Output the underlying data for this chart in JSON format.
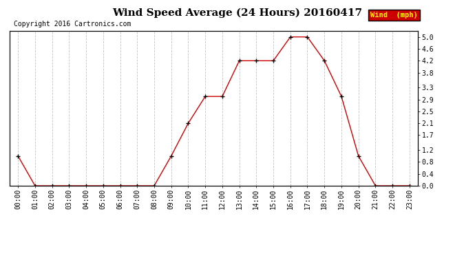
{
  "title": "Wind Speed Average (24 Hours) 20160417",
  "copyright": "Copyright 2016 Cartronics.com",
  "legend_label": "Wind  (mph)",
  "x_labels": [
    "00:00",
    "01:00",
    "02:00",
    "03:00",
    "04:00",
    "05:00",
    "06:00",
    "07:00",
    "08:00",
    "09:00",
    "10:00",
    "11:00",
    "12:00",
    "13:00",
    "14:00",
    "15:00",
    "16:00",
    "17:00",
    "18:00",
    "19:00",
    "20:00",
    "21:00",
    "22:00",
    "23:00"
  ],
  "y_values": [
    1.0,
    0.0,
    0.0,
    0.0,
    0.0,
    0.0,
    0.0,
    0.0,
    0.0,
    1.0,
    2.1,
    3.0,
    3.0,
    4.2,
    4.2,
    4.2,
    5.0,
    5.0,
    4.2,
    3.0,
    1.0,
    0.0,
    0.0,
    0.0
  ],
  "x_values": [
    0,
    1,
    2,
    3,
    4,
    5,
    6,
    7,
    8,
    9,
    10,
    11,
    12,
    13,
    14,
    15,
    16,
    17,
    18,
    19,
    20,
    21,
    22,
    23
  ],
  "ylim": [
    0.0,
    5.2
  ],
  "yticks": [
    0.0,
    0.4,
    0.8,
    1.2,
    1.7,
    2.1,
    2.5,
    2.9,
    3.3,
    3.8,
    4.2,
    4.6,
    5.0
  ],
  "line_color": "#cc0000",
  "marker": "+",
  "marker_size": 4,
  "marker_linewidth": 1.0,
  "line_width": 1.0,
  "grid_color": "#bbbbbb",
  "bg_color": "#ffffff",
  "legend_bg": "#cc0000",
  "legend_text_color": "#ffff00",
  "title_fontsize": 11,
  "copyright_fontsize": 7,
  "tick_fontsize": 7,
  "ytick_fontsize": 7
}
